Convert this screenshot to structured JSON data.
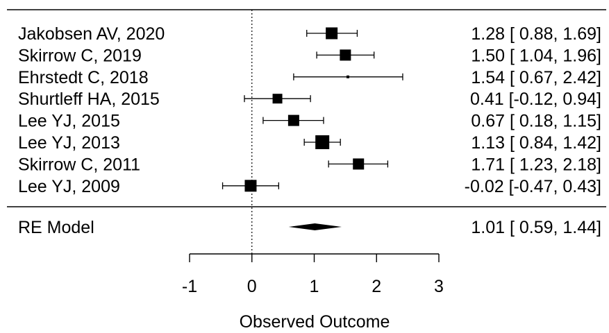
{
  "chart_data": {
    "type": "forest",
    "xlabel": "Observed Outcome",
    "xlim": [
      -1,
      3
    ],
    "ticks": [
      "-1",
      "0",
      "1",
      "2",
      "3"
    ],
    "reference_line": 0,
    "studies": [
      {
        "label": "Jakobsen AV, 2020",
        "estimate": 1.28,
        "lower": 0.88,
        "upper": 1.69,
        "ci_text": "1.28 [ 0.88, 1.69]",
        "weight": 0.85
      },
      {
        "label": "Skirrow C, 2019",
        "estimate": 1.5,
        "lower": 1.04,
        "upper": 1.96,
        "ci_text": "1.50 [ 1.04, 1.96]",
        "weight": 0.8
      },
      {
        "label": "Ehrstedt C, 2018",
        "estimate": 1.54,
        "lower": 0.67,
        "upper": 2.42,
        "ci_text": "1.54 [ 0.67, 2.42]",
        "weight": 0.2
      },
      {
        "label": "Shurtleff HA, 2015",
        "estimate": 0.41,
        "lower": -0.12,
        "upper": 0.94,
        "ci_text": "0.41 [-0.12, 0.94]",
        "weight": 0.7
      },
      {
        "label": "Lee YJ, 2015",
        "estimate": 0.67,
        "lower": 0.18,
        "upper": 1.15,
        "ci_text": "0.67 [ 0.18, 1.15]",
        "weight": 0.8
      },
      {
        "label": "Lee YJ, 2013",
        "estimate": 1.13,
        "lower": 0.84,
        "upper": 1.42,
        "ci_text": "1.13 [ 0.84, 1.42]",
        "weight": 1.0
      },
      {
        "label": "Skirrow C, 2011",
        "estimate": 1.71,
        "lower": 1.23,
        "upper": 2.18,
        "ci_text": "1.71 [ 1.23, 2.18]",
        "weight": 0.8
      },
      {
        "label": "Lee YJ, 2009",
        "estimate": -0.02,
        "lower": -0.47,
        "upper": 0.43,
        "ci_text": "-0.02 [-0.47, 0.43]",
        "weight": 0.85
      }
    ],
    "summary": {
      "label": "RE Model",
      "estimate": 1.01,
      "lower": 0.59,
      "upper": 1.44,
      "ci_text": "1.01 [ 0.59, 1.44]"
    }
  }
}
